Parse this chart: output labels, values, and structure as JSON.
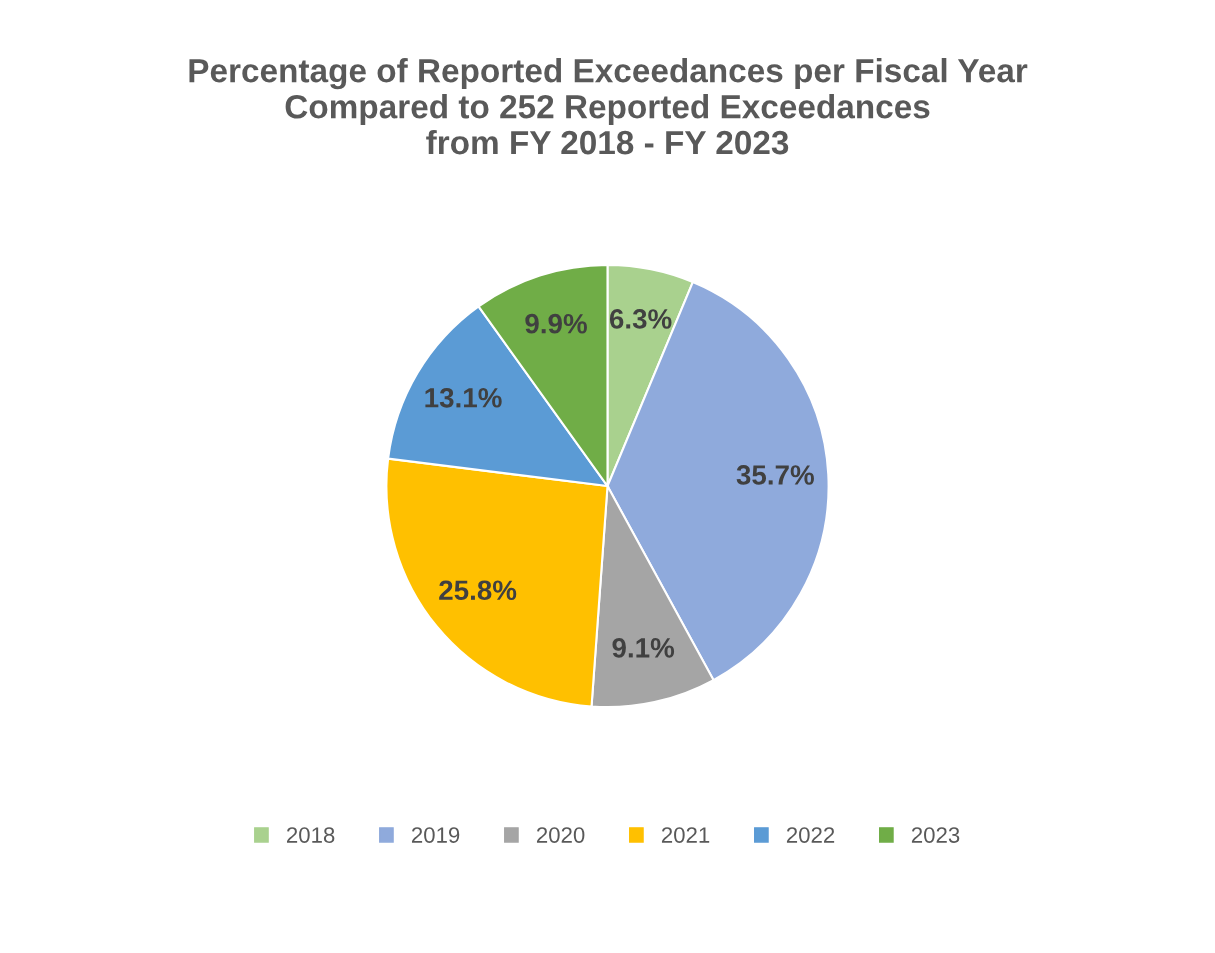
{
  "chart_data": {
    "type": "pie",
    "title": "Percentage of Reported Exceedances per Fiscal Year\nCompared to 252 Reported Exceedances\nfrom FY 2018 - FY 2023",
    "categories": [
      "2018",
      "2019",
      "2020",
      "2021",
      "2022",
      "2023"
    ],
    "values": [
      6.3,
      35.7,
      9.1,
      25.8,
      13.1,
      9.9
    ],
    "value_labels": [
      "6.3%",
      "35.7%",
      "9.1%",
      "25.8%",
      "13.1%",
      "9.9%"
    ],
    "colors": [
      "#a9d18e",
      "#8faadc",
      "#a5a5a5",
      "#ffc000",
      "#5b9bd5",
      "#70ad47"
    ],
    "legend": "bottom"
  }
}
